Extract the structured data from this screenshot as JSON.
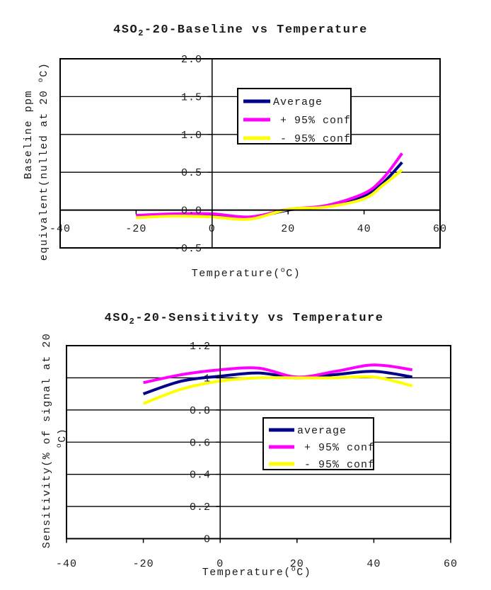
{
  "page": {
    "background": "#FFFFFF"
  },
  "colors": {
    "axis": "#000000",
    "series_average": "#00008B",
    "series_plus95": "#FF00FF",
    "series_minus95": "#FFFF00",
    "legend_background": "#FFFFFF"
  },
  "chart_data": [
    {
      "type": "line",
      "title": {
        "prefix": "4SO",
        "subscript": "2",
        "suffix": "-20-Baseline vs Temperature"
      },
      "xlabel": {
        "pre": "Temperature(",
        "sup": "o",
        "post": "C)"
      },
      "ylabel_line1": "Baseline ppm",
      "ylabel_line2_pre": "equivalent(nulled at 20 ",
      "ylabel_line2_sup": "o",
      "ylabel_line2_post": "C)",
      "xlim": [
        -40,
        60
      ],
      "ylim": [
        -0.5,
        2.0
      ],
      "xticks": [
        -40,
        -20,
        0,
        20,
        40,
        60
      ],
      "xtick_labels": [
        "-40",
        "-20",
        "0",
        "20",
        "40",
        "60"
      ],
      "ytick_values": [
        2.0,
        1.5,
        1.0,
        0.5,
        0.0,
        -0.5
      ],
      "ytick_labels": [
        "2.0",
        "1.5",
        "1.0",
        "0.5",
        "0.0",
        "-0.5"
      ],
      "grid": "horizontal-on",
      "x_axis_cross_y": 0.0,
      "y_axis_cross_x": 0.0,
      "x": [
        -20,
        -10,
        0,
        10,
        20,
        30,
        40,
        45,
        50
      ],
      "series": [
        {
          "name": "Average",
          "color": "#00008B",
          "values": [
            -0.08,
            -0.06,
            -0.07,
            -0.1,
            0.0,
            0.05,
            0.19,
            0.36,
            0.63
          ]
        },
        {
          "name": "+ 95% conf",
          "color": "#FF00FF",
          "values": [
            -0.07,
            -0.05,
            -0.05,
            -0.09,
            0.01,
            0.06,
            0.22,
            0.42,
            0.75
          ]
        },
        {
          "name": "- 95% conf",
          "color": "#FFFF00",
          "values": [
            -0.1,
            -0.08,
            -0.09,
            -0.12,
            0.01,
            0.04,
            0.15,
            0.33,
            0.53
          ]
        }
      ],
      "legend": {
        "position": "upper-center",
        "entries": [
          "Average",
          "+ 95% conf",
          "- 95% conf"
        ]
      }
    },
    {
      "type": "line",
      "title": {
        "prefix": "4SO",
        "subscript": "2",
        "suffix": "-20-Sensitivity vs Temperature"
      },
      "xlabel": {
        "pre": "Temperature(",
        "sup": "o",
        "post": "C)"
      },
      "ylabel_line1": "Sensitivity(% of signal at 20",
      "ylabel_line2_pre": "",
      "ylabel_line2_sup": "o",
      "ylabel_line2_post": "C)",
      "xlim": [
        -40,
        60
      ],
      "ylim": [
        0,
        1.2
      ],
      "xticks": [
        -40,
        -20,
        0,
        20,
        40,
        60
      ],
      "xtick_labels": [
        "-40",
        "-20",
        "0",
        "20",
        "40",
        "60"
      ],
      "ytick_values": [
        1.2,
        1.0,
        0.8,
        0.6,
        0.4,
        0.2,
        0
      ],
      "ytick_labels": [
        "1.2",
        "1",
        "0.8",
        "0.6",
        "0.4",
        "0.2",
        "0"
      ],
      "grid": "horizontal-on",
      "x_axis_cross_y": 0.0,
      "y_axis_cross_x": 0.0,
      "x": [
        -20,
        -10,
        0,
        10,
        20,
        30,
        40,
        50
      ],
      "series": [
        {
          "name": "average",
          "color": "#00008B",
          "values": [
            0.9,
            0.98,
            1.01,
            1.03,
            1.0,
            1.02,
            1.04,
            1.005
          ]
        },
        {
          "name": "+ 95% conf",
          "color": "#FF00FF",
          "values": [
            0.97,
            1.02,
            1.05,
            1.06,
            1.005,
            1.04,
            1.08,
            1.05
          ]
        },
        {
          "name": "- 95% conf",
          "color": "#FFFF00",
          "values": [
            0.84,
            0.93,
            0.98,
            1.0,
            1.0,
            1.0,
            1.005,
            0.95
          ]
        }
      ],
      "legend": {
        "position": "middle-right",
        "entries": [
          "average",
          "+ 95% conf",
          "- 95% conf"
        ]
      }
    }
  ]
}
